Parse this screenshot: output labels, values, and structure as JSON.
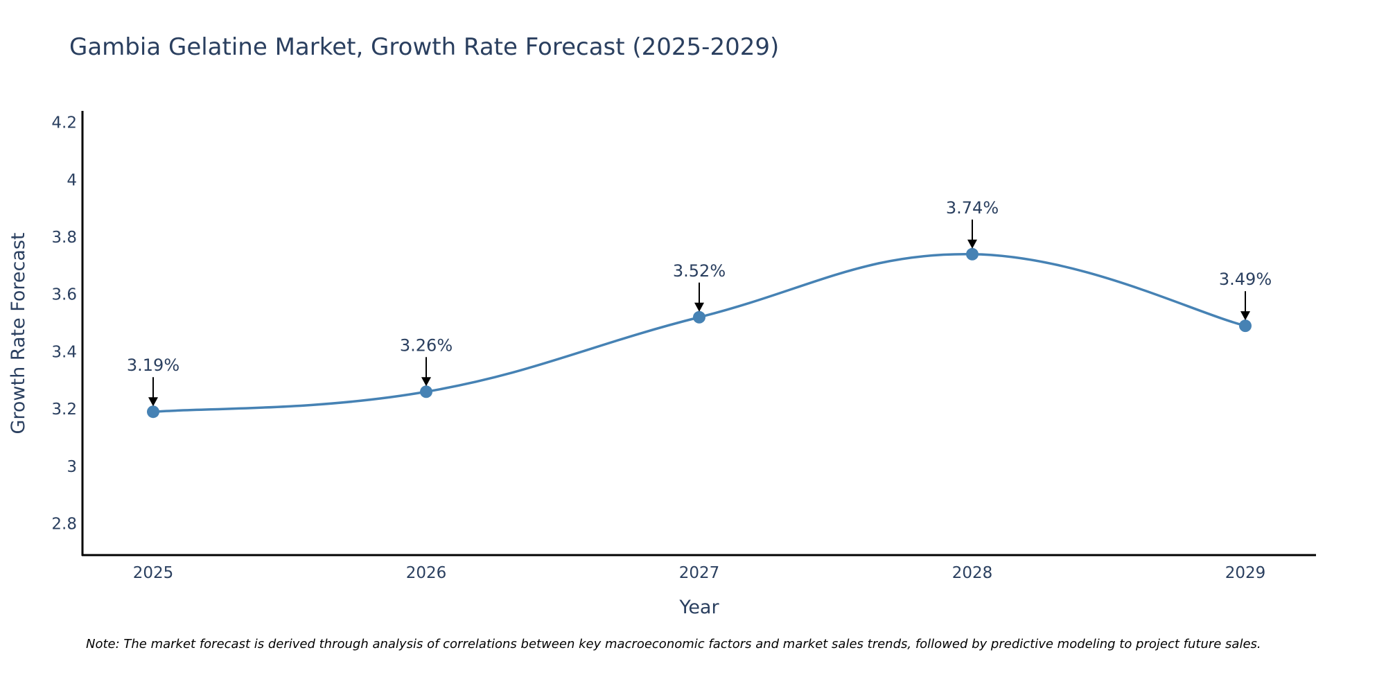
{
  "chart_data": {
    "type": "line",
    "title": "Gambia Gelatine Market, Growth Rate Forecast (2025-2029)",
    "xlabel": "Year",
    "ylabel": "Growth Rate Forecast",
    "categories": [
      "2025",
      "2026",
      "2027",
      "2028",
      "2029"
    ],
    "values": [
      3.19,
      3.26,
      3.52,
      3.74,
      3.49
    ],
    "data_labels": [
      "3.19%",
      "3.26%",
      "3.52%",
      "3.74%",
      "3.49%"
    ],
    "ylim": [
      2.69,
      4.24
    ],
    "y_ticks": [
      2.8,
      3,
      3.2,
      3.4,
      3.6,
      3.8,
      4,
      4.2
    ],
    "y_tick_labels": [
      "2.8",
      "3",
      "3.2",
      "3.4",
      "3.6",
      "3.8",
      "4",
      "4.2"
    ],
    "line_color": "#4682b4",
    "marker_color": "#4682b4",
    "arrow_color": "#000000",
    "grid": false,
    "legend": "none"
  },
  "note": "Note: The market forecast is derived through analysis of correlations between key macroeconomic factors and market sales trends, followed by predictive modeling to project future sales."
}
